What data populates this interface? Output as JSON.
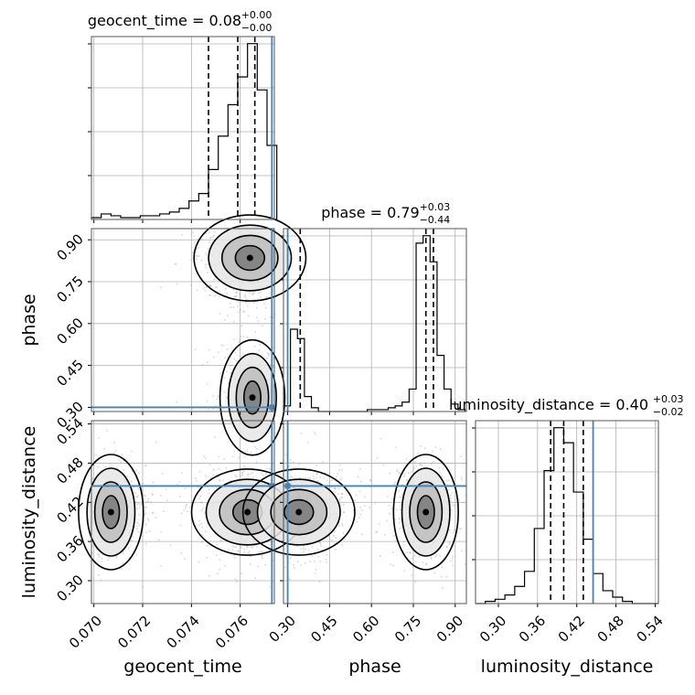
{
  "chart_data": {
    "type": "corner",
    "parameters": [
      "geocent_time",
      "phase",
      "luminosity_distance"
    ],
    "titles": [
      {
        "param": "geocent_time",
        "text": "geocent_time = 0.08",
        "sup": "+0.00",
        "sub": "−0.00"
      },
      {
        "param": "phase",
        "text": "phase = 0.79",
        "sup": "+0.03",
        "sub": "−0.44"
      },
      {
        "param": "luminosity_distance",
        "text": "luminosity_distance = 0.40",
        "sup": "+0.03",
        "sub": "−0.02"
      }
    ],
    "ranges": {
      "geocent_time": [
        0.0699,
        0.0774
      ],
      "phase": [
        0.285,
        0.94
      ],
      "luminosity_distance": [
        0.265,
        0.545
      ]
    },
    "ticks": {
      "geocent_time": [
        "0.070",
        "0.072",
        "0.074",
        "0.076"
      ],
      "phase": [
        "0.30",
        "0.45",
        "0.60",
        "0.75",
        "0.90"
      ],
      "luminosity_distance": [
        "0.30",
        "0.36",
        "0.42",
        "0.48",
        "0.54"
      ]
    },
    "truths": {
      "geocent_time": 0.0773,
      "phase": 0.3,
      "luminosity_distance": 0.445
    },
    "quantiles": {
      "geocent_time": [
        0.0747,
        0.0759,
        0.0766
      ],
      "phase": [
        0.345,
        0.795,
        0.822
      ],
      "luminosity_distance": [
        0.38,
        0.4,
        0.43
      ]
    },
    "histograms": {
      "geocent_time": {
        "edges": [
          0.0699,
          0.0703,
          0.0707,
          0.0711,
          0.0715,
          0.0719,
          0.0723,
          0.0727,
          0.0731,
          0.0735,
          0.0739,
          0.0743,
          0.0747,
          0.0751,
          0.0755,
          0.0759,
          0.0763,
          0.0767,
          0.0771,
          0.0775
        ],
        "counts": [
          1,
          3,
          2,
          1,
          1,
          2,
          2,
          3,
          4,
          6,
          10,
          14,
          27,
          45,
          62,
          77,
          95,
          70,
          40
        ]
      },
      "phase": {
        "edges": [
          0.285,
          0.31,
          0.335,
          0.36,
          0.385,
          0.41,
          0.435,
          0.46,
          0.485,
          0.51,
          0.535,
          0.56,
          0.585,
          0.61,
          0.635,
          0.66,
          0.685,
          0.71,
          0.735,
          0.76,
          0.785,
          0.81,
          0.835,
          0.86,
          0.885,
          0.91,
          0.935
        ],
        "counts": [
          3,
          44,
          39,
          8,
          2,
          0,
          0,
          0,
          0,
          0,
          0,
          0,
          1,
          1,
          1,
          2,
          3,
          5,
          12,
          90,
          94,
          80,
          30,
          12,
          4,
          1
        ]
      },
      "luminosity_distance": {
        "edges": [
          0.265,
          0.28,
          0.295,
          0.31,
          0.325,
          0.34,
          0.355,
          0.37,
          0.385,
          0.4,
          0.415,
          0.43,
          0.445,
          0.46,
          0.475,
          0.49,
          0.505,
          0.52,
          0.535,
          0.545
        ],
        "counts": [
          0,
          1,
          2,
          4,
          8,
          15,
          35,
          62,
          82,
          75,
          52,
          30,
          14,
          6,
          3,
          1,
          0,
          0,
          0
        ]
      }
    },
    "density_modes": [
      {
        "x": "geocent_time",
        "y": "phase",
        "modes": [
          [
            0.0764,
            0.835
          ],
          [
            0.0765,
            0.335
          ]
        ]
      },
      {
        "x": "geocent_time",
        "y": "luminosity_distance",
        "modes": [
          [
            0.0763,
            0.405
          ],
          [
            0.0707,
            0.405
          ]
        ]
      },
      {
        "x": "phase",
        "y": "luminosity_distance",
        "modes": [
          [
            0.34,
            0.405
          ],
          [
            0.795,
            0.405
          ]
        ]
      }
    ]
  }
}
